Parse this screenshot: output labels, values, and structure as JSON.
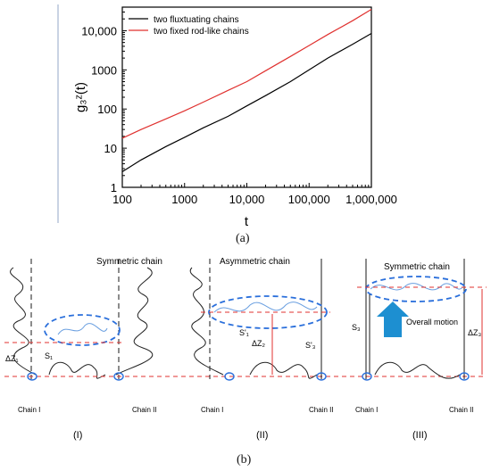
{
  "chart_data": {
    "type": "line",
    "title": "",
    "xlabel": "t",
    "ylabel": "g₃ᶻ(t)",
    "xscale": "log",
    "yscale": "log",
    "xlim": [
      100,
      1000000
    ],
    "ylim": [
      1,
      40000
    ],
    "x_ticks": [
      "100",
      "1000",
      "10,000",
      "100,000",
      "1,000,000"
    ],
    "y_ticks": [
      "1",
      "10",
      "100",
      "1000",
      "10,000"
    ],
    "legend_position": "top-left",
    "grid": false,
    "series": [
      {
        "name": "two fluxtuating chains",
        "color": "#000000",
        "x": [
          100,
          200,
          500,
          1000,
          2000,
          5000,
          10000,
          20000,
          50000,
          100000,
          200000,
          500000,
          1000000
        ],
        "y": [
          2.5,
          5,
          11,
          19,
          33,
          65,
          120,
          220,
          500,
          1000,
          2000,
          4500,
          8500
        ]
      },
      {
        "name": "two fixed rod-like chains",
        "color": "#e0312f",
        "x": [
          100,
          200,
          500,
          1000,
          2000,
          5000,
          10000,
          20000,
          50000,
          100000,
          200000,
          500000,
          1000000
        ],
        "y": [
          18,
          30,
          56,
          90,
          150,
          300,
          500,
          950,
          2200,
          4200,
          8000,
          18000,
          35000
        ]
      }
    ]
  },
  "labels": {
    "panel_a": "(a)",
    "panel_b": "(b)",
    "sub_I": "(I)",
    "sub_II": "(II)",
    "sub_III": "(III)",
    "symmetric_1": "Symmetric chain",
    "asymmetric": "Asymmetric chain",
    "symmetric_3": "Symmetric chain",
    "chain1_a": "Chain I",
    "chain2_a": "Chain II",
    "chain1_b": "Chain I",
    "chain2_b": "Chain II",
    "chain1_c": "Chain I",
    "chain2_c": "Chain II",
    "overall_motion": "Overall motion",
    "dz1": "ΔZ₁",
    "dz2": "ΔZ₂",
    "dz3": "ΔZ₃",
    "s1": "S₁",
    "s1p": "S'₁",
    "s3p": "S'₃",
    "s3": "S₃"
  },
  "colors": {
    "accent_blue": "#2a6fdb",
    "red_dash": "#e0312f",
    "arrow_blue": "#1d8fd1"
  }
}
